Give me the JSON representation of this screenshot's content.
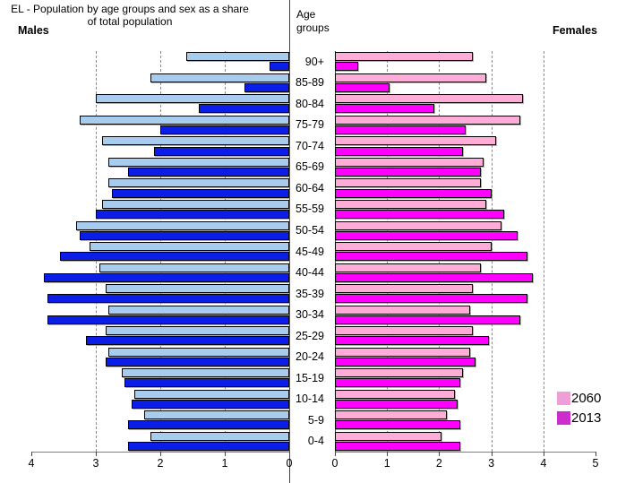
{
  "header": {
    "title": "EL - Population by age groups and sex as a share of total population",
    "males_label": "Males",
    "age_groups_label": "Age groups",
    "females_label": "Females"
  },
  "legend": {
    "position": "right",
    "items": [
      {
        "label": "2060"
      },
      {
        "label": "2013"
      }
    ]
  },
  "colors": {
    "male_2060": "#A8CCEE",
    "male_2013": "#0A1EE8",
    "female_2060": "#FFADD8",
    "female_2013": "#FF00FF",
    "legend_2060": "#EE9FD6",
    "legend_2013": "#CC2DCC",
    "gridline": "#8A8A8A",
    "axis": "#808080"
  },
  "chart_data": {
    "type": "bar",
    "subtype": "population-pyramid",
    "title": "EL - Population by age groups and sex as a share of total population",
    "center_axis_label": "Age groups",
    "left_panel_label": "Males",
    "right_panel_label": "Females",
    "grid": "dashed-vertical",
    "legend_position": "right",
    "age_groups": [
      "90+",
      "85-89",
      "80-84",
      "75-79",
      "70-74",
      "65-69",
      "60-64",
      "55-59",
      "50-54",
      "45-49",
      "40-44",
      "35-39",
      "30-34",
      "25-29",
      "20-24",
      "15-19",
      "10-14",
      "5-9",
      "0-4"
    ],
    "males": {
      "axis_range": [
        0,
        4
      ],
      "ticks": [
        4,
        3,
        2,
        1,
        0
      ],
      "gridlines": [
        3,
        2,
        1
      ],
      "series": [
        {
          "name": "2060",
          "values": [
            1.6,
            2.15,
            3.0,
            3.25,
            2.9,
            2.8,
            2.8,
            2.9,
            3.3,
            3.1,
            2.95,
            2.85,
            2.8,
            2.85,
            2.8,
            2.6,
            2.4,
            2.25,
            2.15
          ]
        },
        {
          "name": "2013",
          "values": [
            0.3,
            0.7,
            1.4,
            2.0,
            2.1,
            2.5,
            2.75,
            3.0,
            3.25,
            3.55,
            3.8,
            3.75,
            3.75,
            3.15,
            2.85,
            2.55,
            2.45,
            2.5,
            2.5
          ]
        }
      ]
    },
    "females": {
      "axis_range": [
        0,
        5
      ],
      "ticks": [
        0,
        1,
        2,
        3,
        4,
        5
      ],
      "gridlines": [
        1,
        2,
        3,
        4
      ],
      "series": [
        {
          "name": "2060",
          "values": [
            2.65,
            2.9,
            3.6,
            3.55,
            3.1,
            2.85,
            2.8,
            2.9,
            3.2,
            3.0,
            2.8,
            2.65,
            2.6,
            2.65,
            2.6,
            2.45,
            2.3,
            2.15,
            2.05
          ]
        },
        {
          "name": "2013",
          "values": [
            0.45,
            1.05,
            1.9,
            2.5,
            2.45,
            2.8,
            3.0,
            3.25,
            3.5,
            3.7,
            3.8,
            3.7,
            3.55,
            2.95,
            2.7,
            2.4,
            2.35,
            2.4,
            2.4
          ]
        }
      ]
    }
  }
}
